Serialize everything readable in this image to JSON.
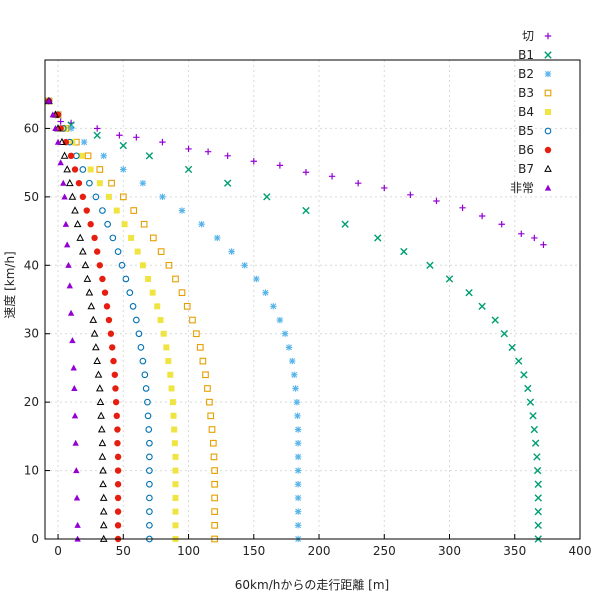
{
  "chart_data": {
    "type": "scatter",
    "title": "",
    "xlabel": "60km/hからの走行距離 [m]",
    "ylabel": "速度 [km/h]",
    "xlim": [
      -10,
      400
    ],
    "ylim": [
      0,
      70
    ],
    "xticks": [
      0,
      50,
      100,
      150,
      200,
      250,
      300,
      350,
      400
    ],
    "yticks": [
      0,
      10,
      20,
      30,
      40,
      50,
      60
    ],
    "grid": true,
    "legend_position": "top-right",
    "series": [
      {
        "name": "切",
        "color": "#9400d3",
        "marker": "plus",
        "points": [
          [
            -7,
            64
          ],
          [
            -2,
            62
          ],
          [
            2,
            61
          ],
          [
            10,
            60.8
          ],
          [
            30,
            60
          ],
          [
            47,
            59
          ],
          [
            60,
            58.7
          ],
          [
            80,
            58
          ],
          [
            100,
            57
          ],
          [
            115,
            56.6
          ],
          [
            130,
            56
          ],
          [
            150,
            55.2
          ],
          [
            170,
            54.6
          ],
          [
            190,
            53.6
          ],
          [
            210,
            53
          ],
          [
            230,
            52
          ],
          [
            250,
            51.3
          ],
          [
            270,
            50.3
          ],
          [
            290,
            49.4
          ],
          [
            310,
            48.4
          ],
          [
            325,
            47.2
          ],
          [
            340,
            46
          ],
          [
            355,
            44.6
          ],
          [
            365,
            44
          ],
          [
            372,
            43
          ]
        ]
      },
      {
        "name": "B1",
        "color": "#009e73",
        "marker": "x",
        "points": [
          [
            -7,
            64
          ],
          [
            0,
            62
          ],
          [
            10,
            60.5
          ],
          [
            30,
            59
          ],
          [
            50,
            57.5
          ],
          [
            70,
            56
          ],
          [
            100,
            54
          ],
          [
            130,
            52
          ],
          [
            160,
            50
          ],
          [
            190,
            48
          ],
          [
            220,
            46
          ],
          [
            245,
            44
          ],
          [
            265,
            42
          ],
          [
            285,
            40
          ],
          [
            300,
            38
          ],
          [
            315,
            36
          ],
          [
            325,
            34
          ],
          [
            335,
            32
          ],
          [
            342,
            30
          ],
          [
            348,
            28
          ],
          [
            353,
            26
          ],
          [
            357,
            24
          ],
          [
            360,
            22
          ],
          [
            362,
            20
          ],
          [
            364,
            18
          ],
          [
            365,
            16
          ],
          [
            366,
            14
          ],
          [
            367,
            12
          ],
          [
            367.5,
            10
          ],
          [
            368,
            8
          ],
          [
            368,
            6
          ],
          [
            368,
            4
          ],
          [
            368,
            2
          ],
          [
            368,
            0
          ]
        ]
      },
      {
        "name": "B2",
        "color": "#56b4e9",
        "marker": "star",
        "points": [
          [
            -7,
            64
          ],
          [
            0,
            62
          ],
          [
            10,
            60
          ],
          [
            20,
            58
          ],
          [
            35,
            56
          ],
          [
            50,
            54
          ],
          [
            65,
            52
          ],
          [
            80,
            50
          ],
          [
            95,
            48
          ],
          [
            110,
            46
          ],
          [
            122,
            44
          ],
          [
            133,
            42
          ],
          [
            143,
            40
          ],
          [
            152,
            38
          ],
          [
            159,
            36
          ],
          [
            165,
            34
          ],
          [
            170,
            32
          ],
          [
            174,
            30
          ],
          [
            177,
            28
          ],
          [
            179.5,
            26
          ],
          [
            181,
            24
          ],
          [
            182,
            22
          ],
          [
            183,
            20
          ],
          [
            183.5,
            18
          ],
          [
            184,
            16
          ],
          [
            184,
            14
          ],
          [
            184,
            12
          ],
          [
            184,
            10
          ],
          [
            184,
            8
          ],
          [
            184,
            6
          ],
          [
            184,
            4
          ],
          [
            184,
            2
          ],
          [
            184,
            0
          ]
        ]
      },
      {
        "name": "B3",
        "color": "#e69f00",
        "marker": "square",
        "points": [
          [
            -7,
            64
          ],
          [
            0,
            62
          ],
          [
            6,
            60
          ],
          [
            14,
            58
          ],
          [
            23,
            56
          ],
          [
            32,
            54
          ],
          [
            41,
            52
          ],
          [
            50,
            50
          ],
          [
            58,
            48
          ],
          [
            66,
            46
          ],
          [
            73,
            44
          ],
          [
            79,
            42
          ],
          [
            85,
            40
          ],
          [
            90,
            38
          ],
          [
            95,
            36
          ],
          [
            99,
            34
          ],
          [
            103,
            32
          ],
          [
            106,
            30
          ],
          [
            109,
            28
          ],
          [
            111,
            26
          ],
          [
            113,
            24
          ],
          [
            114.5,
            22
          ],
          [
            116,
            20
          ],
          [
            117,
            18
          ],
          [
            118,
            16
          ],
          [
            119,
            14
          ],
          [
            119.5,
            12
          ],
          [
            120,
            10
          ],
          [
            120,
            8
          ],
          [
            120,
            6
          ],
          [
            120,
            4
          ],
          [
            120,
            2
          ],
          [
            120,
            0
          ]
        ]
      },
      {
        "name": "B4",
        "color": "#f0e442",
        "marker": "filled-square",
        "points": [
          [
            -7,
            64
          ],
          [
            0,
            62
          ],
          [
            5,
            60
          ],
          [
            11,
            58
          ],
          [
            18,
            56
          ],
          [
            25,
            54
          ],
          [
            32,
            52
          ],
          [
            39,
            50
          ],
          [
            45,
            48
          ],
          [
            51,
            46
          ],
          [
            56,
            44
          ],
          [
            61,
            42
          ],
          [
            65,
            40
          ],
          [
            69,
            38
          ],
          [
            72.5,
            36
          ],
          [
            76,
            34
          ],
          [
            78.5,
            32
          ],
          [
            81,
            30
          ],
          [
            83,
            28
          ],
          [
            84.5,
            26
          ],
          [
            86,
            24
          ],
          [
            87,
            22
          ],
          [
            88,
            20
          ],
          [
            88.5,
            18
          ],
          [
            89,
            16
          ],
          [
            89.5,
            14
          ],
          [
            90,
            12
          ],
          [
            90,
            10
          ],
          [
            90,
            8
          ],
          [
            90,
            6
          ],
          [
            90,
            4
          ],
          [
            90,
            2
          ],
          [
            90,
            0
          ]
        ]
      },
      {
        "name": "B5",
        "color": "#0072b2",
        "marker": "circle",
        "points": [
          [
            -7,
            64
          ],
          [
            0,
            62
          ],
          [
            4,
            60
          ],
          [
            9,
            58
          ],
          [
            14,
            56
          ],
          [
            19,
            54
          ],
          [
            24,
            52
          ],
          [
            29,
            50
          ],
          [
            34,
            48
          ],
          [
            38,
            46
          ],
          [
            42,
            44
          ],
          [
            46,
            42
          ],
          [
            49,
            40
          ],
          [
            52,
            38
          ],
          [
            55,
            36
          ],
          [
            57.5,
            34
          ],
          [
            60,
            32
          ],
          [
            62,
            30
          ],
          [
            63.5,
            28
          ],
          [
            65,
            26
          ],
          [
            66.5,
            24
          ],
          [
            67.5,
            22
          ],
          [
            68.5,
            20
          ],
          [
            69,
            18
          ],
          [
            69.5,
            16
          ],
          [
            70,
            14
          ],
          [
            70,
            12
          ],
          [
            70,
            10
          ],
          [
            70,
            8
          ],
          [
            70,
            6
          ],
          [
            70,
            4
          ],
          [
            70,
            2
          ],
          [
            70,
            0
          ]
        ]
      },
      {
        "name": "B6",
        "color": "#e51e10",
        "marker": "filled-circle",
        "points": [
          [
            -7,
            64
          ],
          [
            0,
            62
          ],
          [
            2,
            60
          ],
          [
            6,
            58
          ],
          [
            10,
            56
          ],
          [
            13,
            54
          ],
          [
            16,
            52
          ],
          [
            19,
            50
          ],
          [
            22,
            48
          ],
          [
            25,
            46
          ],
          [
            28,
            44
          ],
          [
            30,
            42
          ],
          [
            32,
            40
          ],
          [
            34,
            38
          ],
          [
            36,
            36
          ],
          [
            37.5,
            34
          ],
          [
            39,
            32
          ],
          [
            40.5,
            30
          ],
          [
            41.5,
            28
          ],
          [
            42.5,
            26
          ],
          [
            43.5,
            24
          ],
          [
            44,
            22
          ],
          [
            44.5,
            20
          ],
          [
            45,
            18
          ],
          [
            45.5,
            16
          ],
          [
            45.5,
            14
          ],
          [
            46,
            12
          ],
          [
            46,
            10
          ],
          [
            46,
            8
          ],
          [
            46,
            6
          ],
          [
            46,
            4
          ],
          [
            46,
            2
          ],
          [
            46,
            0
          ]
        ]
      },
      {
        "name": "B7",
        "color": "#000000",
        "marker": "triangle",
        "points": [
          [
            -7,
            64
          ],
          [
            -2,
            62
          ],
          [
            0,
            60
          ],
          [
            3,
            58
          ],
          [
            5,
            56
          ],
          [
            7,
            54
          ],
          [
            9,
            52
          ],
          [
            11,
            50
          ],
          [
            13,
            48
          ],
          [
            15,
            46
          ],
          [
            17,
            44
          ],
          [
            19,
            42
          ],
          [
            21,
            40
          ],
          [
            22.5,
            38
          ],
          [
            24,
            36
          ],
          [
            25.5,
            34
          ],
          [
            27,
            32
          ],
          [
            28,
            30
          ],
          [
            29,
            28
          ],
          [
            30,
            26
          ],
          [
            31,
            24
          ],
          [
            32,
            22
          ],
          [
            32.5,
            20
          ],
          [
            33,
            18
          ],
          [
            33.5,
            16
          ],
          [
            34,
            14
          ],
          [
            34,
            12
          ],
          [
            34.5,
            10
          ],
          [
            34.5,
            8
          ],
          [
            35,
            6
          ],
          [
            35,
            4
          ],
          [
            35,
            2
          ],
          [
            35,
            0
          ]
        ]
      },
      {
        "name": "非常",
        "color": "#9400d3",
        "marker": "filled-triangle",
        "points": [
          [
            -7,
            64
          ],
          [
            -4,
            62
          ],
          [
            -2,
            60
          ],
          [
            0,
            58
          ],
          [
            2,
            55
          ],
          [
            4,
            52
          ],
          [
            5,
            50
          ],
          [
            6,
            46
          ],
          [
            7,
            43
          ],
          [
            8,
            40
          ],
          [
            9,
            37
          ],
          [
            10,
            33
          ],
          [
            11,
            29
          ],
          [
            12,
            25
          ],
          [
            12.5,
            22
          ],
          [
            13,
            18
          ],
          [
            13.5,
            14
          ],
          [
            14,
            10
          ],
          [
            14.5,
            6
          ],
          [
            15,
            2
          ],
          [
            15,
            0
          ]
        ]
      }
    ]
  }
}
